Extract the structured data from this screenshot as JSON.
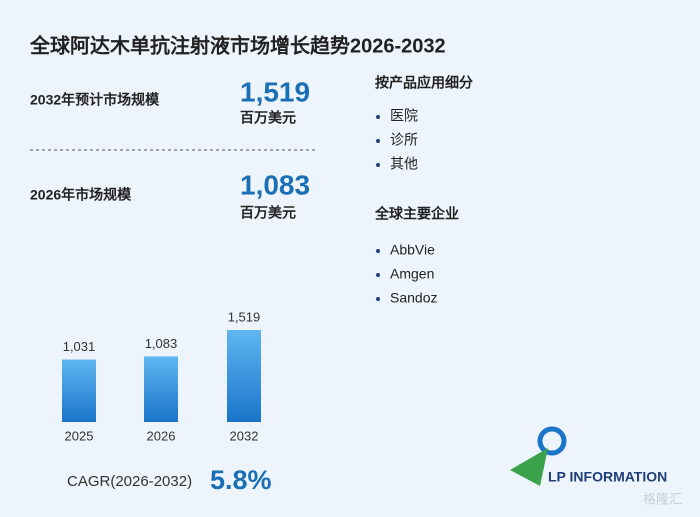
{
  "chart_data": {
    "type": "bar",
    "title": "全球阿达木单抗注射液市场增长趋势2026-2032",
    "categories": [
      "2025",
      "2026",
      "2032"
    ],
    "values": [
      1031,
      1083,
      1519
    ],
    "value_labels": [
      "1,031",
      "1,083",
      "1,519"
    ],
    "color": "#1a75c9"
  },
  "stats": [
    {
      "label": "2032年预计市场规模",
      "value": "1,519",
      "unit": "百万美元"
    },
    {
      "label": "2026年市场规模",
      "value": "1,083",
      "unit": "百万美元"
    }
  ],
  "segments": {
    "title": "按产品应用细分",
    "items": [
      "医院",
      "诊所",
      "其他"
    ]
  },
  "companies": {
    "title": "全球主要企业",
    "items": [
      "AbbVie",
      "Amgen",
      "Sandoz"
    ]
  },
  "cagr": {
    "label": "CAGR(2026-2032)",
    "value": "5.8%"
  },
  "logo": "LP INFORMATION",
  "source_mark": "格隆汇"
}
